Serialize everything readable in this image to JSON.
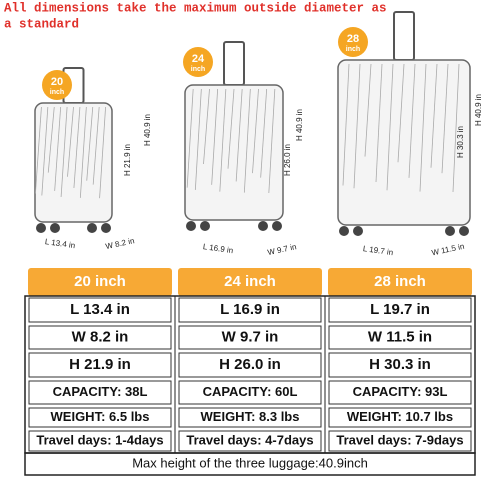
{
  "note": "All dimensions take the maximum outside diameter as a standard",
  "luggage": [
    {
      "badge_size": "20",
      "badge_unit": "inch",
      "height_total": "H 40.9 in",
      "height": "H 21.9 in",
      "length": "L 13.4 in",
      "width": "W 8.2 in"
    },
    {
      "badge_size": "24",
      "badge_unit": "inch",
      "height_total": "H 40.9 in",
      "height": "H 26.0 in",
      "length": "L 16.9 in",
      "width": "W 9.7 in"
    },
    {
      "badge_size": "28",
      "badge_unit": "inch",
      "height_total": "H 40.9 in",
      "height": "H 30.3 in",
      "length": "L 19.7 in",
      "width": "W 11.5 in"
    }
  ],
  "table": {
    "headers": [
      "20 inch",
      "24 inch",
      "28 inch"
    ],
    "rows": [
      [
        "L  13.4 in",
        "L  16.9 in",
        "L  19.7 in"
      ],
      [
        "W  8.2 in",
        "W  9.7 in",
        "W  11.5 in"
      ],
      [
        "H  21.9 in",
        "H  26.0 in",
        "H  30.3 in"
      ],
      [
        "CAPACITY: 38L",
        "CAPACITY: 60L",
        "CAPACITY: 93L"
      ],
      [
        "WEIGHT: 6.5 lbs",
        "WEIGHT: 8.3 lbs",
        "WEIGHT: 10.7 lbs"
      ],
      [
        "Travel days: 1-4days",
        "Travel days: 4-7days",
        "Travel days: 7-9days"
      ]
    ],
    "footer": "Max height of the three luggage:40.9inch"
  }
}
